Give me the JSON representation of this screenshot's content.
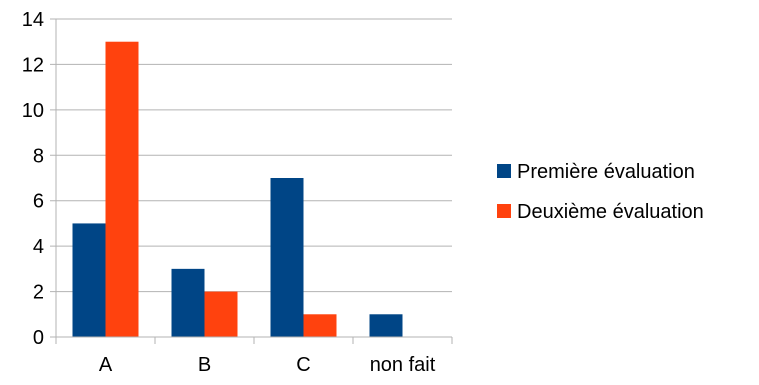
{
  "chart_data": {
    "type": "bar",
    "categories": [
      "A",
      "B",
      "C",
      "non fait"
    ],
    "series": [
      {
        "name": "Première évaluation",
        "values": [
          5,
          3,
          7,
          1
        ],
        "color": "#004586"
      },
      {
        "name": "Deuxième évaluation",
        "values": [
          13,
          2,
          1,
          0
        ],
        "color": "#ff420e"
      }
    ],
    "ylim": [
      0,
      14
    ],
    "yticks": [
      0,
      2,
      4,
      6,
      8,
      10,
      12,
      14
    ],
    "grid": true,
    "legend_position": "right",
    "gridline_color": "#b3b3b3",
    "axis_color": "#b3b3b3"
  }
}
